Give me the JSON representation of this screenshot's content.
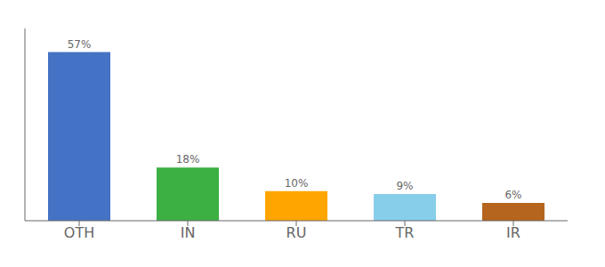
{
  "chart_data": {
    "type": "bar",
    "categories": [
      "OTH",
      "IN",
      "RU",
      "TR",
      "IR"
    ],
    "values": [
      57,
      18,
      10,
      9,
      6
    ],
    "value_labels": [
      "57%",
      "18%",
      "10%",
      "9%",
      "6%"
    ],
    "colors": [
      "#4472c4",
      "#3cb043",
      "#ffa500",
      "#87ceeb",
      "#b5651d"
    ],
    "ylim": [
      0,
      65
    ],
    "grid": false,
    "data_labels": true,
    "tick_labels": "x"
  }
}
